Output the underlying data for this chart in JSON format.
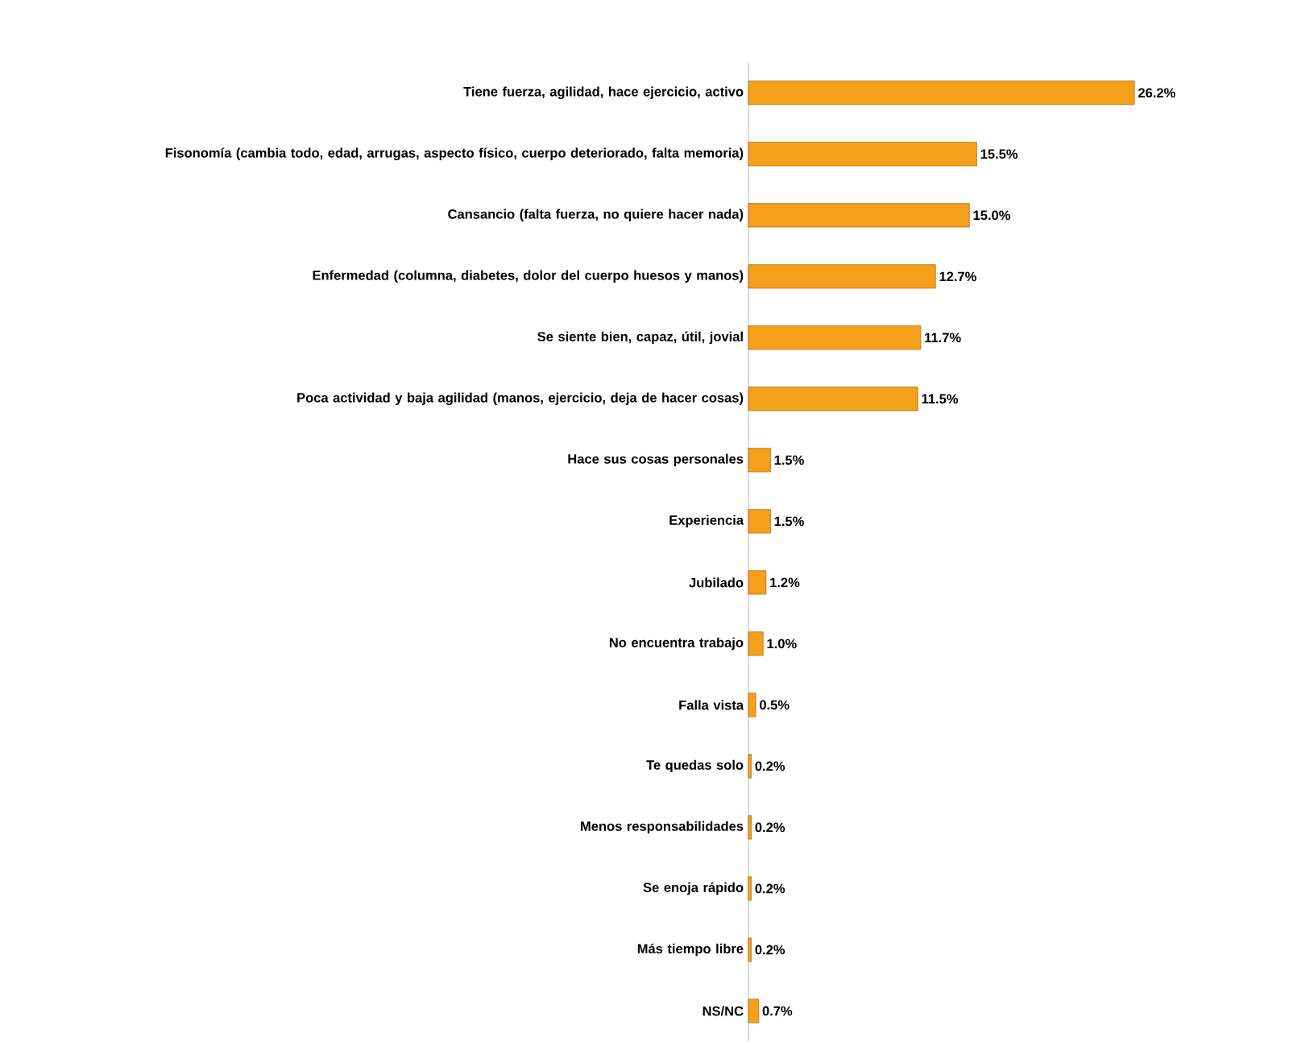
{
  "chart_data": {
    "type": "bar",
    "orientation": "horizontal",
    "color": "#f5a01a",
    "categories": [
      "Tiene fuerza, agilidad, hace ejercicio, activo",
      "Fisonomía (cambia todo, edad, arrugas, aspecto físico, cuerpo deteriorado, falta memoria)",
      "Cansancio (falta fuerza, no quiere hacer nada)",
      "Enfermedad (columna, diabetes, dolor del cuerpo huesos y manos)",
      "Se siente bien, capaz, útil, jovial",
      "Poca actividad y baja agilidad (manos, ejercicio, deja de hacer cosas)",
      "Hace sus cosas personales",
      "Experiencia",
      "Jubilado",
      "No encuentra trabajo",
      "Falla vista",
      "Te quedas solo",
      "Menos responsabilidades",
      "Se enoja rápido",
      "Más tiempo libre",
      "NS/NC"
    ],
    "values": [
      26.2,
      15.5,
      15.0,
      12.7,
      11.7,
      11.5,
      1.5,
      1.5,
      1.2,
      1.0,
      0.5,
      0.2,
      0.2,
      0.2,
      0.2,
      0.7
    ],
    "value_labels": [
      "26.2%",
      "15.5%",
      "15.0%",
      "12.7%",
      "11.7%",
      "11.5%",
      "1.5%",
      "1.5%",
      "1.2%",
      "1.0%",
      "0.5%",
      "0.2%",
      "0.2%",
      "0.2%",
      "0.2%",
      "0.7%"
    ]
  }
}
